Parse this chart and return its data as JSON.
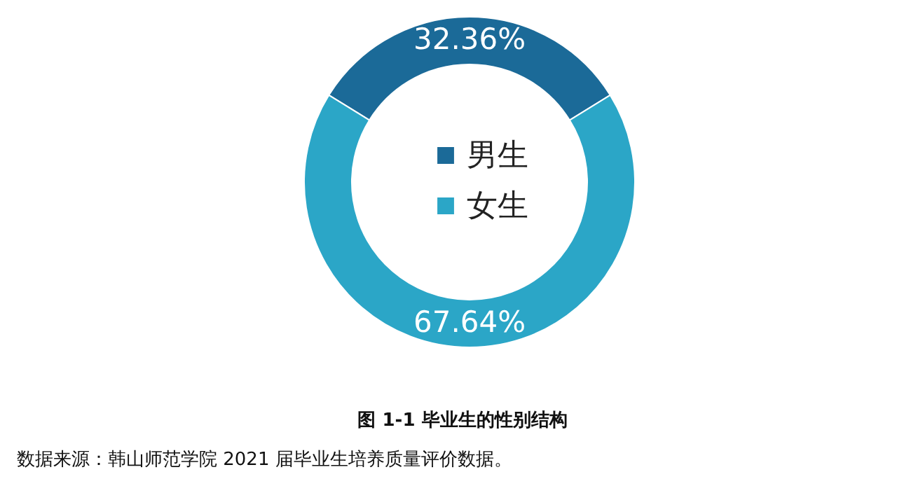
{
  "chart_data": {
    "type": "donut",
    "title": "图 1-1    毕业生的性别结构",
    "categories": [
      "男生",
      "女生"
    ],
    "values": [
      32.36,
      67.64
    ],
    "colors": [
      "#1b6a98",
      "#2ba6c7"
    ],
    "value_labels": [
      "32.36%",
      "67.64%"
    ],
    "legend": "center",
    "annotations": [
      "数据来源：韩山师范学院 2021 届毕业生培养质量评价数据。"
    ]
  }
}
